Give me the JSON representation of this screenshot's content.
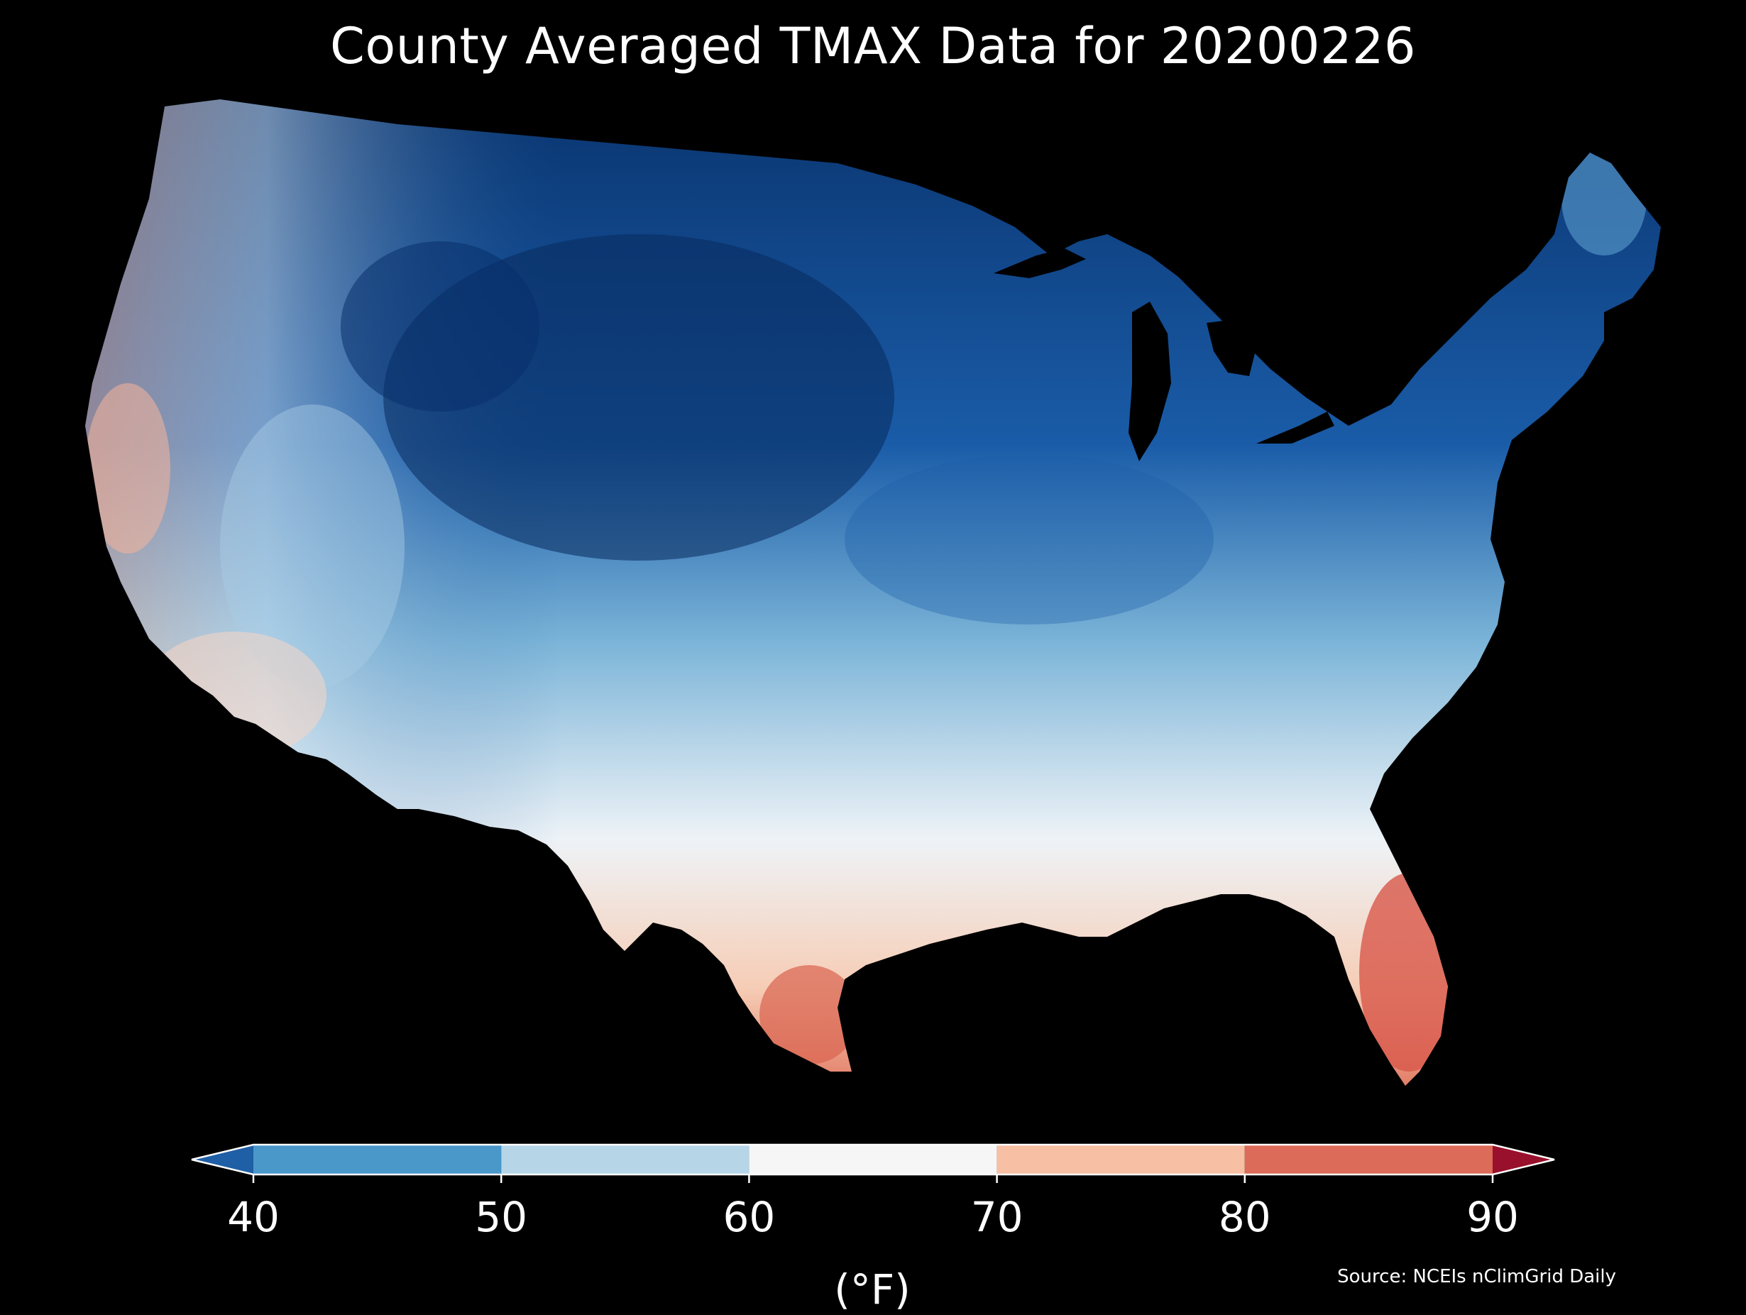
{
  "title": "County Averaged TMAX Data for 20200226",
  "source": "Source: NCEIs nClimGrid Daily",
  "colorbar": {
    "unit_label": "(°F)",
    "tick_labels": [
      "40",
      "50",
      "60",
      "70",
      "80",
      "90"
    ],
    "bins": [
      {
        "from": 40,
        "to": 50,
        "color": "#4a98c9"
      },
      {
        "from": 50,
        "to": 60,
        "color": "#b6d6e8"
      },
      {
        "from": 60,
        "to": 70,
        "color": "#f6f6f6"
      },
      {
        "from": 70,
        "to": 80,
        "color": "#f7bfa4"
      },
      {
        "from": 80,
        "to": 90,
        "color": "#dc6b59"
      }
    ],
    "extend_low_color": "#1f5fa5",
    "extend_high_color": "#98102b"
  },
  "map": {
    "projection": "conterminous-us-counties",
    "colormap": "diverging-blue-white-red"
  }
}
